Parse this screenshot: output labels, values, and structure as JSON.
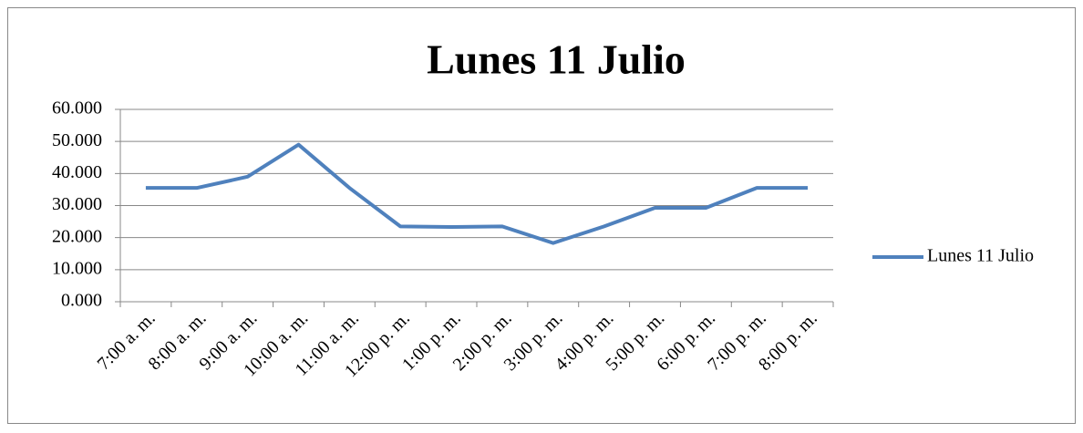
{
  "chart_data": {
    "type": "line",
    "title": "Lunes 11 Julio",
    "categories": [
      "7:00 a. m.",
      "8:00 a. m.",
      "9:00 a. m.",
      "10:00 a. m.",
      "11:00 a. m.",
      "12:00 p. m.",
      "1:00 p. m.",
      "2:00 p. m.",
      "3:00 p. m.",
      "4:00 p. m.",
      "5:00 p. m.",
      "6:00 p. m.",
      "7:00 p. m.",
      "8:00 p. m."
    ],
    "series": [
      {
        "name": "Lunes 11 Julio",
        "color": "#4f81bd",
        "values": [
          35.5,
          35.5,
          39,
          49,
          35.5,
          23.5,
          23.3,
          23.5,
          18.3,
          23.5,
          29.3,
          29.3,
          35.5,
          35.5
        ]
      }
    ],
    "ylim": [
      0,
      60
    ],
    "yticks": [
      {
        "value": 0,
        "label": "0.000"
      },
      {
        "value": 10,
        "label": "10.000"
      },
      {
        "value": 20,
        "label": "20.000"
      },
      {
        "value": 30,
        "label": "30.000"
      },
      {
        "value": 40,
        "label": "40.000"
      },
      {
        "value": 50,
        "label": "50.000"
      },
      {
        "value": 60,
        "label": "60.000"
      }
    ],
    "grid": true,
    "legend": "right"
  }
}
